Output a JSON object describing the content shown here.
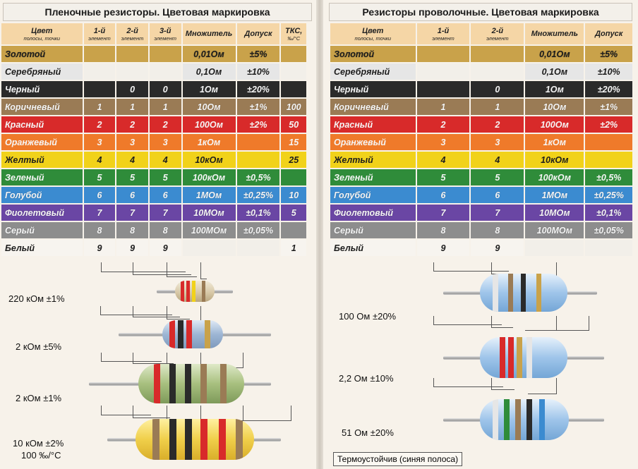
{
  "left": {
    "title": "Пленочные резисторы. Цветовая маркировка",
    "headers": [
      {
        "main": "Цвет",
        "sub": "полосы, точки"
      },
      {
        "main": "1-й",
        "sub": "элемент"
      },
      {
        "main": "2-й",
        "sub": "элемент"
      },
      {
        "main": "3-й",
        "sub": "элемент"
      },
      {
        "main": "Множитель",
        "sub": ""
      },
      {
        "main": "Допуск",
        "sub": ""
      },
      {
        "main": "ТКС,",
        "sub": "‰/°C"
      }
    ],
    "rows": [
      {
        "name": "Золотой",
        "d1": "",
        "d2": "",
        "d3": "",
        "mult": "0,01Ом",
        "tol": "±5%",
        "tks": ""
      },
      {
        "name": "Серебряный",
        "d1": "",
        "d2": "",
        "d3": "",
        "mult": "0,1Ом",
        "tol": "±10%",
        "tks": ""
      },
      {
        "name": "Черный",
        "d1": "",
        "d2": "0",
        "d3": "0",
        "mult": "1Ом",
        "tol": "±20%",
        "tks": ""
      },
      {
        "name": "Коричневый",
        "d1": "1",
        "d2": "1",
        "d3": "1",
        "mult": "10Ом",
        "tol": "±1%",
        "tks": "100"
      },
      {
        "name": "Красный",
        "d1": "2",
        "d2": "2",
        "d3": "2",
        "mult": "100Ом",
        "tol": "±2%",
        "tks": "50"
      },
      {
        "name": "Оранжевый",
        "d1": "3",
        "d2": "3",
        "d3": "3",
        "mult": "1кОм",
        "tol": "",
        "tks": "15"
      },
      {
        "name": "Желтый",
        "d1": "4",
        "d2": "4",
        "d3": "4",
        "mult": "10кОм",
        "tol": "",
        "tks": "25"
      },
      {
        "name": "Зеленый",
        "d1": "5",
        "d2": "5",
        "d3": "5",
        "mult": "100кОм",
        "tol": "±0,5%",
        "tks": ""
      },
      {
        "name": "Голубой",
        "d1": "6",
        "d2": "6",
        "d3": "6",
        "mult": "1МОм",
        "tol": "±0,25%",
        "tks": "10"
      },
      {
        "name": "Фиолетовый",
        "d1": "7",
        "d2": "7",
        "d3": "7",
        "mult": "10МОм",
        "tol": "±0,1%",
        "tks": "5"
      },
      {
        "name": "Серый",
        "d1": "8",
        "d2": "8",
        "d3": "8",
        "mult": "100МОм",
        "tol": "±0,05%",
        "tks": ""
      },
      {
        "name": "Белый",
        "d1": "9",
        "d2": "9",
        "d3": "9",
        "mult": "",
        "tol": "",
        "tks": "1"
      }
    ],
    "examples": [
      {
        "label": "220 кОм ±1%"
      },
      {
        "label": "2 кОм ±5%"
      },
      {
        "label": "2 кОм ±1%"
      },
      {
        "label": "10 кОм ±2%",
        "label2": "100 ‰/°C"
      }
    ]
  },
  "right": {
    "title": "Резисторы проволочные. Цветовая маркировка",
    "headers": [
      {
        "main": "Цвет",
        "sub": "полосы, точки"
      },
      {
        "main": "1-й",
        "sub": "элемент"
      },
      {
        "main": "2-й",
        "sub": "элемент"
      },
      {
        "main": "Множитель",
        "sub": ""
      },
      {
        "main": "Допуск",
        "sub": ""
      }
    ],
    "rows": [
      {
        "name": "Золотой",
        "d1": "",
        "d2": "",
        "mult": "0,01Ом",
        "tol": "±5%"
      },
      {
        "name": "Серебряный",
        "d1": "",
        "d2": "",
        "mult": "0,1Ом",
        "tol": "±10%"
      },
      {
        "name": "Черный",
        "d1": "",
        "d2": "0",
        "mult": "1Ом",
        "tol": "±20%"
      },
      {
        "name": "Коричневый",
        "d1": "1",
        "d2": "1",
        "mult": "10Ом",
        "tol": "±1%"
      },
      {
        "name": "Красный",
        "d1": "2",
        "d2": "2",
        "mult": "100Ом",
        "tol": "±2%"
      },
      {
        "name": "Оранжевый",
        "d1": "3",
        "d2": "3",
        "mult": "1кОм",
        "tol": ""
      },
      {
        "name": "Желтый",
        "d1": "4",
        "d2": "4",
        "mult": "10кОм",
        "tol": ""
      },
      {
        "name": "Зеленый",
        "d1": "5",
        "d2": "5",
        "mult": "100кОм",
        "tol": "±0,5%"
      },
      {
        "name": "Голубой",
        "d1": "6",
        "d2": "6",
        "mult": "1МОм",
        "tol": "±0,25%"
      },
      {
        "name": "Фиолетовый",
        "d1": "7",
        "d2": "7",
        "mult": "10МОм",
        "tol": "±0,1%"
      },
      {
        "name": "Серый",
        "d1": "8",
        "d2": "8",
        "mult": "100МОм",
        "tol": "±0,05%"
      },
      {
        "name": "Белый",
        "d1": "9",
        "d2": "9",
        "mult": "",
        "tol": ""
      }
    ],
    "examples": [
      {
        "label": "100 Ом ±20%"
      },
      {
        "label": "2,2 Ом ±10%"
      },
      {
        "label": "51 Ом ±20%"
      }
    ],
    "note": "Термоустойчив (синяя полоса)"
  },
  "colors": {
    "gold": "#c9a24a",
    "silver": "#e6e6e6",
    "black": "#2a2a2a",
    "brown": "#9a7b55",
    "red": "#d82a2a",
    "orange": "#ef7a2a",
    "yellow": "#f1d21a",
    "green": "#2f8c3a",
    "blue": "#3b8bd0",
    "violet": "#6a46a4",
    "grey": "#8d8d8d",
    "white": "#f7f4ef",
    "header": "#f5d6a6"
  }
}
